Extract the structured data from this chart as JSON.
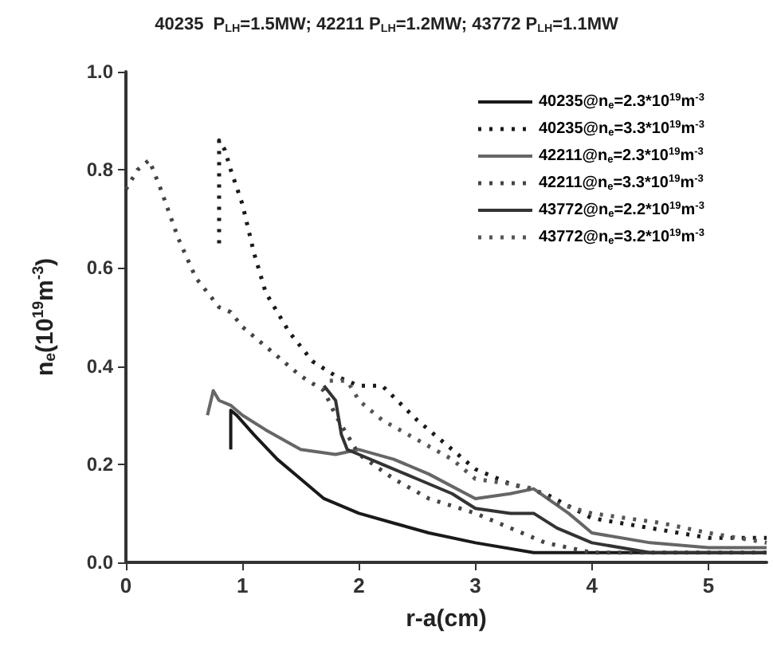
{
  "chart_data": {
    "type": "line",
    "title": "40235  P$_{LH}$=1.5MW; 42211 P$_{LH}$=1.2MW; 43772 P$_{LH}$=1.1MW",
    "xlabel": "r-a(cm)",
    "ylabel": "n$_{e}$(10$^{19}$m$^{-3}$)",
    "xlim": [
      0,
      5.5
    ],
    "ylim": [
      0,
      1.0
    ],
    "xticks": [
      0,
      1,
      2,
      3,
      4,
      5
    ],
    "yticks": [
      {
        "value": 0,
        "label": "0.0"
      },
      {
        "value": 0.2,
        "label": "0.2"
      },
      {
        "value": 0.4,
        "label": "0.4"
      },
      {
        "value": 0.6,
        "label": "0.6"
      },
      {
        "value": 0.8,
        "label": "0.8"
      },
      {
        "value": 1.0,
        "label": "1.0"
      }
    ],
    "grid": false,
    "legend": "top right",
    "marker": "none",
    "series": [
      {
        "name": "40235@n$_{e}$=2.3*10$^{19}$m$^{-3}$",
        "color": "#1a1a1a",
        "line_style": "solid",
        "x": [
          0.9,
          0.9,
          0.95,
          1.1,
          1.3,
          1.5,
          1.7,
          2.0,
          2.3,
          2.6,
          3.0,
          3.5,
          4.0,
          4.5,
          5.0,
          5.5
        ],
        "values": [
          0.23,
          0.31,
          0.3,
          0.26,
          0.21,
          0.17,
          0.13,
          0.1,
          0.08,
          0.06,
          0.04,
          0.02,
          0.02,
          0.02,
          0.02,
          0.02
        ]
      },
      {
        "name": "40235@n$_{e}$=3.3*10$^{19}$m$^{-3}$",
        "color": "#1a1a1a",
        "line_style": "dotted",
        "x": [
          0.8,
          0.8,
          0.85,
          0.9,
          1.0,
          1.1,
          1.2,
          1.4,
          1.6,
          1.8,
          2.0,
          2.2,
          2.5,
          2.8,
          3.0,
          3.3,
          3.6,
          4.0,
          4.5,
          5.0,
          5.5
        ],
        "values": [
          0.65,
          0.86,
          0.84,
          0.8,
          0.73,
          0.63,
          0.55,
          0.47,
          0.41,
          0.38,
          0.36,
          0.36,
          0.29,
          0.23,
          0.19,
          0.16,
          0.14,
          0.09,
          0.07,
          0.05,
          0.05
        ]
      },
      {
        "name": "42211@n$_{e}$=2.3*10$^{19}$m$^{-3}$",
        "color": "#666666",
        "line_style": "solid",
        "x": [
          0.7,
          0.75,
          0.8,
          0.9,
          1.0,
          1.2,
          1.5,
          1.8,
          2.0,
          2.3,
          2.6,
          3.0,
          3.3,
          3.5,
          3.8,
          4.0,
          4.5,
          5.0,
          5.5
        ],
        "values": [
          0.3,
          0.35,
          0.33,
          0.32,
          0.3,
          0.27,
          0.23,
          0.22,
          0.23,
          0.21,
          0.18,
          0.13,
          0.14,
          0.15,
          0.1,
          0.06,
          0.04,
          0.03,
          0.03
        ]
      },
      {
        "name": "42211@n$_{e}$=3.3*10$^{19}$m$^{-3}$",
        "color": "#444444",
        "line_style": "dotted",
        "x": [
          0.0,
          0.1,
          0.2,
          0.3,
          0.45,
          0.6,
          0.8,
          0.9,
          1.0,
          1.1,
          1.3,
          1.5,
          1.7,
          1.8,
          2.0,
          2.3,
          2.6,
          3.0,
          3.3,
          3.6,
          4.0,
          4.5,
          5.0,
          5.5
        ],
        "values": [
          0.76,
          0.8,
          0.82,
          0.76,
          0.66,
          0.58,
          0.52,
          0.51,
          0.48,
          0.46,
          0.42,
          0.38,
          0.35,
          0.3,
          0.22,
          0.17,
          0.13,
          0.1,
          0.07,
          0.04,
          0.02,
          0.02,
          0.02,
          0.02
        ]
      },
      {
        "name": "43772@n$_{e}$=2.2*10$^{19}$m$^{-3}$",
        "color": "#333333",
        "line_style": "solid",
        "x": [
          1.7,
          1.8,
          1.85,
          1.9,
          2.0,
          2.2,
          2.5,
          2.8,
          3.0,
          3.3,
          3.5,
          3.7,
          4.0,
          4.5,
          5.0,
          5.5
        ],
        "values": [
          0.36,
          0.33,
          0.26,
          0.23,
          0.22,
          0.2,
          0.17,
          0.14,
          0.11,
          0.1,
          0.1,
          0.07,
          0.04,
          0.02,
          0.02,
          0.02
        ]
      },
      {
        "name": "43772@n$_{e}$=3.2*10$^{19}$m$^{-3}$",
        "color": "#555555",
        "line_style": "dotted",
        "x": [
          1.75,
          1.9,
          2.0,
          2.2,
          2.5,
          2.8,
          3.0,
          3.3,
          3.5,
          3.7,
          4.0,
          4.3,
          4.6,
          5.0,
          5.5
        ],
        "values": [
          0.37,
          0.37,
          0.33,
          0.29,
          0.25,
          0.21,
          0.17,
          0.16,
          0.15,
          0.12,
          0.1,
          0.09,
          0.08,
          0.06,
          0.04
        ]
      }
    ]
  }
}
